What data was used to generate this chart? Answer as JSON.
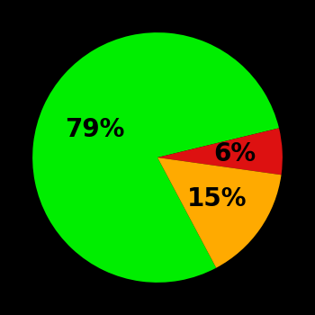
{
  "slices": [
    79,
    6,
    15
  ],
  "colors": [
    "#00ee00",
    "#dd1111",
    "#ffaa00"
  ],
  "labels": [
    "79%",
    "6%",
    "15%"
  ],
  "background_color": "#000000",
  "startangle": -62,
  "label_fontsize": 20,
  "label_color": "#000000",
  "label_radii": [
    0.55,
    0.62,
    0.58
  ]
}
